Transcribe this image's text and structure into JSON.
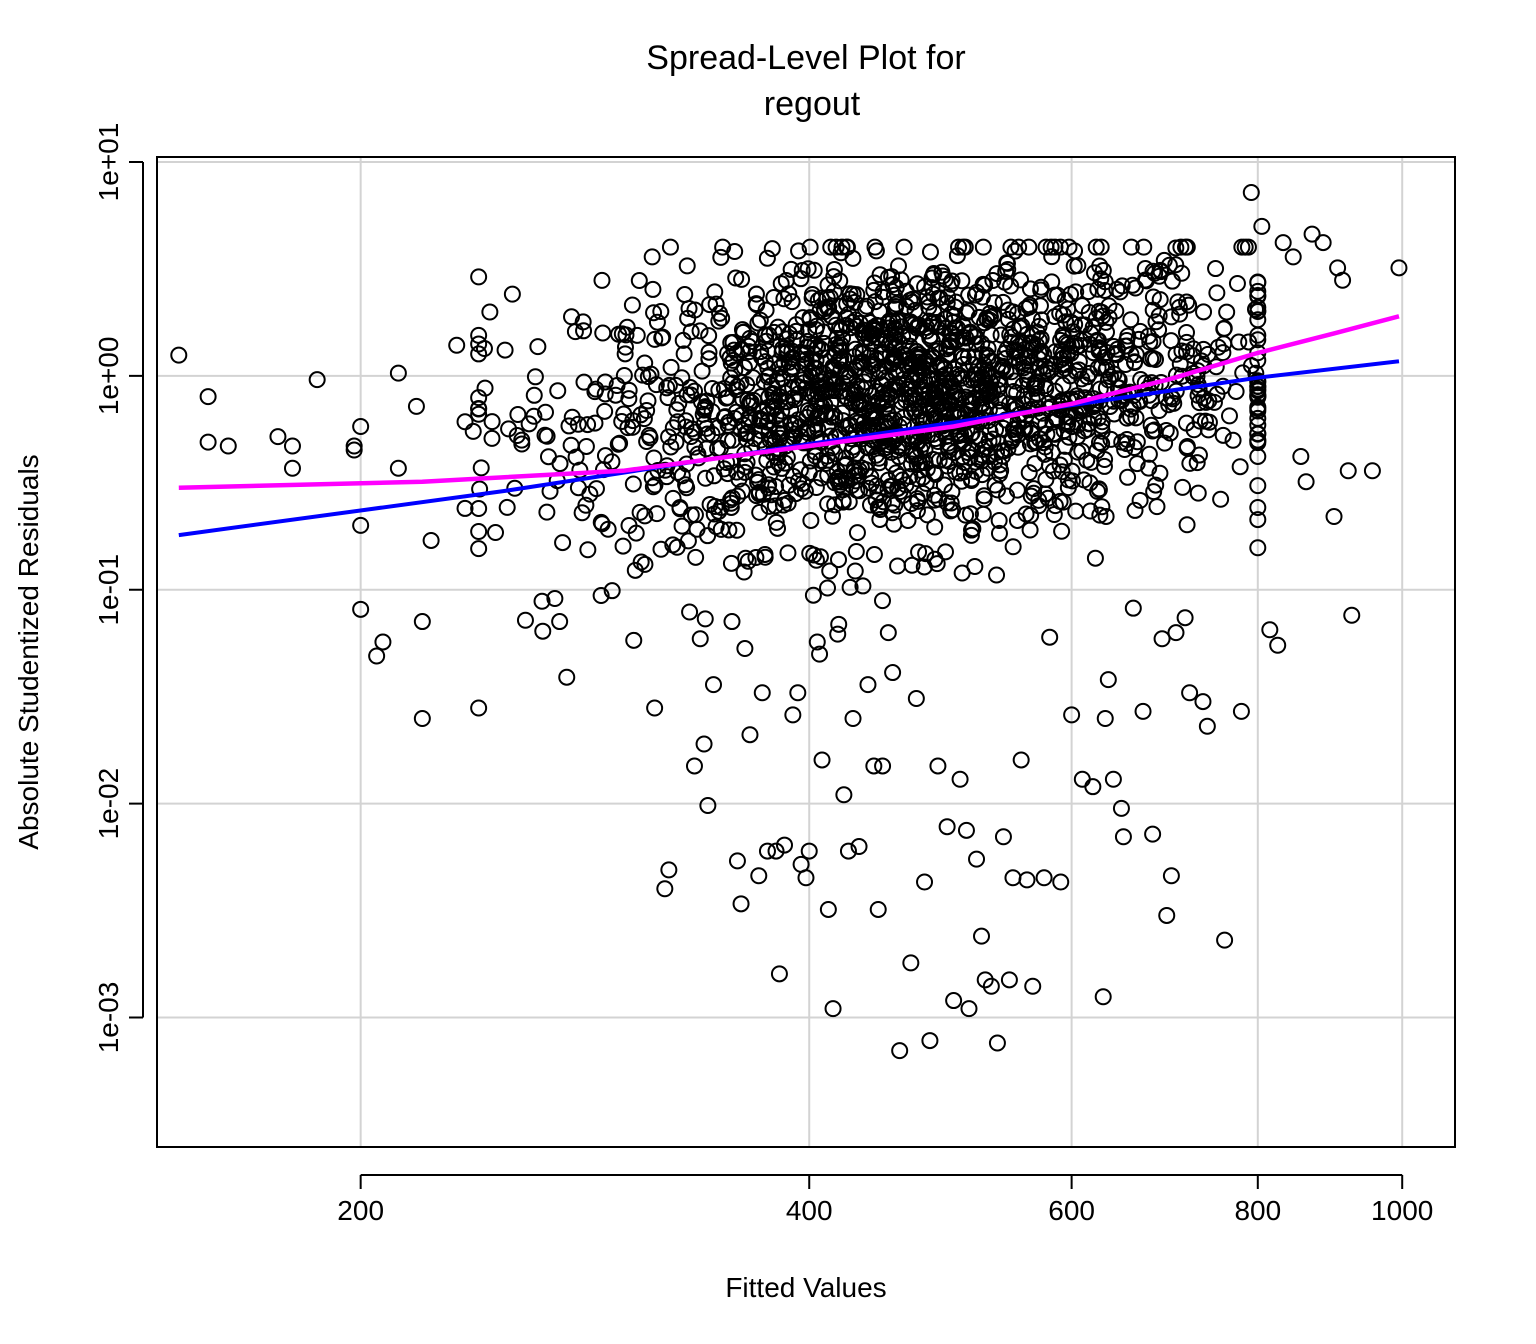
{
  "chart_data": {
    "type": "scatter",
    "title": [
      "Spread-Level Plot for",
      "regout"
    ],
    "xlabel": "Fitted Values",
    "ylabel": "Absolute Studentized Residuals",
    "x_scale": "log",
    "y_scale": "log",
    "xlim": [
      146,
      1085
    ],
    "ylim": [
      0.00035,
      10
    ],
    "x_ticks": [
      {
        "value": 200,
        "label": "200"
      },
      {
        "value": 400,
        "label": "400"
      },
      {
        "value": 600,
        "label": "600"
      },
      {
        "value": 800,
        "label": "800"
      },
      {
        "value": 1000,
        "label": "1000"
      }
    ],
    "y_ticks": [
      {
        "value": 0.001,
        "label": "1e-03"
      },
      {
        "value": 0.01,
        "label": "1e-02"
      },
      {
        "value": 0.1,
        "label": "1e-01"
      },
      {
        "value": 1,
        "label": "1e+00"
      },
      {
        "value": 10,
        "label": "1e+01"
      }
    ],
    "grid": true,
    "colors": {
      "points": "#000000",
      "linear_fit": "#0000ff",
      "smooth_fit": "#ff00ff",
      "grid": "#d3d3d3"
    },
    "series": [
      {
        "kind": "points",
        "points": [
          [
            151,
            1.25
          ],
          [
            158,
            0.8
          ],
          [
            158,
            0.49
          ],
          [
            163,
            0.47
          ],
          [
            176,
            0.52
          ],
          [
            180,
            0.47
          ],
          [
            180,
            0.37
          ],
          [
            187,
            0.96
          ],
          [
            198,
            0.45
          ],
          [
            198,
            0.47
          ],
          [
            200,
            0.2
          ],
          [
            200,
            0.58
          ],
          [
            200,
            0.081
          ],
          [
            205,
            0.049
          ],
          [
            207,
            0.057
          ],
          [
            212,
            0.37
          ],
          [
            212,
            1.03
          ],
          [
            218,
            0.72
          ],
          [
            220,
            0.025
          ],
          [
            220,
            0.071
          ],
          [
            223,
            0.17
          ],
          [
            232,
            1.39
          ],
          [
            235,
            0.61
          ],
          [
            235,
            0.24
          ],
          [
            238,
            0.55
          ],
          [
            240,
            0.028
          ],
          [
            245,
            0.51
          ],
          [
            250,
            1.32
          ],
          [
            255,
            0.66
          ],
          [
            258,
            0.072
          ],
          [
            262,
            0.99
          ],
          [
            265,
            0.064
          ],
          [
            270,
            0.091
          ],
          [
            272,
            0.071
          ],
          [
            275,
            0.039
          ],
          [
            280,
            0.3
          ],
          [
            285,
            0.28
          ],
          [
            290,
            0.094
          ],
          [
            295,
            0.099
          ],
          [
            300,
            0.16
          ],
          [
            305,
            0.058
          ],
          [
            308,
            0.23
          ],
          [
            315,
            0.028
          ],
          [
            320,
            0.004
          ],
          [
            322,
            0.0049
          ],
          [
            330,
            2.4
          ],
          [
            335,
            0.015
          ],
          [
            338,
            0.059
          ],
          [
            340,
            0.019
          ],
          [
            342,
            0.0098
          ],
          [
            345,
            0.036
          ],
          [
            355,
            0.071
          ],
          [
            358,
            0.0054
          ],
          [
            360,
            0.0034
          ],
          [
            365,
            0.021
          ],
          [
            370,
            0.0046
          ],
          [
            372,
            0.033
          ],
          [
            375,
            0.006
          ],
          [
            380,
            0.006
          ],
          [
            382,
            0.0016
          ],
          [
            385,
            0.0064
          ],
          [
            390,
            0.026
          ],
          [
            393,
            0.033
          ],
          [
            395,
            0.0052
          ],
          [
            398,
            0.0045
          ],
          [
            400,
            0.006
          ],
          [
            405,
            0.057
          ],
          [
            408,
            0.016
          ],
          [
            412,
            0.0032
          ],
          [
            415,
            0.0011
          ],
          [
            418,
            0.062
          ],
          [
            422,
            0.011
          ],
          [
            425,
            0.006
          ],
          [
            428,
            0.025
          ],
          [
            432,
            0.0063
          ],
          [
            438,
            0.036
          ],
          [
            442,
            0.015
          ],
          [
            445,
            0.0032
          ],
          [
            448,
            0.015
          ],
          [
            452,
            0.063
          ],
          [
            455,
            0.041
          ],
          [
            460,
            0.0007
          ],
          [
            468,
            0.0018
          ],
          [
            472,
            0.031
          ],
          [
            478,
            0.0043
          ],
          [
            482,
            0.00078
          ],
          [
            488,
            0.015
          ],
          [
            495,
            0.0078
          ],
          [
            500,
            0.0012
          ],
          [
            505,
            0.013
          ],
          [
            510,
            0.0075
          ],
          [
            512,
            0.0011
          ],
          [
            518,
            0.0055
          ],
          [
            522,
            0.0024
          ],
          [
            525,
            0.0015
          ],
          [
            530,
            0.0014
          ],
          [
            535,
            0.00076
          ],
          [
            540,
            0.007
          ],
          [
            545,
            0.0015
          ],
          [
            548,
            0.0045
          ],
          [
            555,
            0.016
          ],
          [
            560,
            0.0044
          ],
          [
            565,
            0.0014
          ],
          [
            575,
            0.0045
          ],
          [
            580,
            0.06
          ],
          [
            590,
            0.0043
          ],
          [
            600,
            0.026
          ],
          [
            610,
            0.013
          ],
          [
            620,
            0.012
          ],
          [
            630,
            0.00125
          ],
          [
            632,
            0.025
          ],
          [
            635,
            0.038
          ],
          [
            640,
            0.013
          ],
          [
            648,
            0.0095
          ],
          [
            650,
            0.007
          ],
          [
            660,
            0.082
          ],
          [
            670,
            0.027
          ],
          [
            680,
            0.0072
          ],
          [
            690,
            0.059
          ],
          [
            695,
            0.003
          ],
          [
            700,
            0.0046
          ],
          [
            705,
            0.063
          ],
          [
            715,
            0.074
          ],
          [
            720,
            0.033
          ],
          [
            735,
            0.03
          ],
          [
            740,
            0.023
          ],
          [
            760,
            0.0023
          ],
          [
            770,
            0.5
          ],
          [
            780,
            0.027
          ],
          [
            792,
            7.2
          ],
          [
            800,
            0.42
          ],
          [
            805,
            5.0
          ],
          [
            815,
            0.065
          ],
          [
            825,
            0.055
          ],
          [
            832,
            4.2
          ],
          [
            845,
            3.6
          ],
          [
            855,
            0.42
          ],
          [
            862,
            0.32
          ],
          [
            870,
            4.6
          ],
          [
            885,
            4.2
          ],
          [
            900,
            0.22
          ],
          [
            905,
            3.2
          ],
          [
            912,
            2.8
          ],
          [
            920,
            0.36
          ],
          [
            925,
            0.076
          ],
          [
            955,
            0.36
          ],
          [
            995,
            3.2
          ]
        ]
      },
      {
        "kind": "line",
        "points": [
          [
            151,
            0.18
          ],
          [
            250,
            0.29
          ],
          [
            400,
            0.48
          ],
          [
            600,
            0.73
          ],
          [
            800,
            0.98
          ],
          [
            995,
            1.17
          ]
        ]
      },
      {
        "kind": "line",
        "points": [
          [
            151,
            0.3
          ],
          [
            220,
            0.32
          ],
          [
            300,
            0.36
          ],
          [
            400,
            0.47
          ],
          [
            500,
            0.58
          ],
          [
            600,
            0.74
          ],
          [
            700,
            0.97
          ],
          [
            800,
            1.28
          ],
          [
            900,
            1.58
          ],
          [
            995,
            1.9
          ]
        ]
      }
    ]
  }
}
